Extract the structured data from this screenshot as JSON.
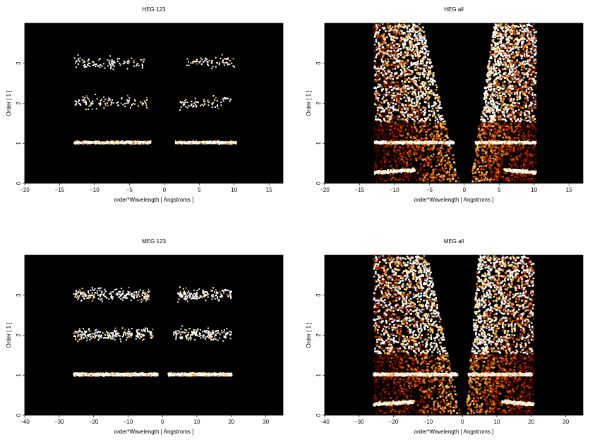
{
  "chart_data": [
    {
      "id": "heg123",
      "type": "heatmap",
      "title": "HEG 123",
      "xlabel": "order*Wavelength [ Angstroms ]",
      "ylabel": "Order [ 1 ]",
      "xlim": [
        -20,
        17
      ],
      "ylim": [
        0,
        4
      ],
      "xticks": [
        -20,
        -15,
        -10,
        -5,
        0,
        5,
        10,
        15
      ],
      "yticks": [
        0,
        1,
        2,
        3
      ],
      "background": "#000000",
      "bands": [
        {
          "order": 1,
          "x_ranges": [
            [
              -13,
              -2
            ],
            [
              1.5,
              10.2
            ]
          ],
          "intensity": "high"
        },
        {
          "order": 2,
          "x_ranges": [
            [
              -13,
              -2.5
            ],
            [
              2,
              9.5
            ]
          ],
          "intensity": "sparse"
        },
        {
          "order": 3,
          "x_ranges": [
            [
              -13,
              -3
            ],
            [
              3,
              10
            ]
          ],
          "intensity": "sparse"
        }
      ],
      "fans": []
    },
    {
      "id": "hegall",
      "type": "heatmap",
      "title": "HEG all",
      "xlabel": "order*Wavelength [ Angstroms ]",
      "ylabel": "Order [ 1 ]",
      "xlim": [
        -20,
        17
      ],
      "ylim": [
        0,
        4
      ],
      "xticks": [
        -20,
        -15,
        -10,
        -5,
        0,
        5,
        10,
        15
      ],
      "yticks": [
        0,
        1,
        2,
        3
      ],
      "background": "#000000",
      "bands": [
        {
          "order": 1,
          "x_ranges": [
            [
              -13,
              -1.5
            ],
            [
              1.5,
              10.2
            ]
          ],
          "intensity": "high"
        }
      ],
      "fans": [
        {
          "side": "left",
          "x_outer": -13,
          "x_inner_top": -6.2,
          "x_inner_bottom": -0.8
        },
        {
          "side": "right",
          "x_outer": 10.2,
          "x_inner_top": 4.2,
          "x_inner_bottom": 0.8
        }
      ]
    },
    {
      "id": "meg123",
      "type": "heatmap",
      "title": "MEG 123",
      "xlabel": "order*Wavelength [ Angstroms ]",
      "ylabel": "Order [ 1 ]",
      "xlim": [
        -40,
        35
      ],
      "ylim": [
        0,
        4
      ],
      "xticks": [
        -40,
        -30,
        -20,
        -10,
        0,
        10,
        20,
        30
      ],
      "yticks": [
        0,
        1,
        2,
        3
      ],
      "background": "#000000",
      "bands": [
        {
          "order": 1,
          "x_ranges": [
            [
              -26,
              -1.5
            ],
            [
              1.5,
              20
            ]
          ],
          "intensity": "high"
        },
        {
          "order": 2,
          "x_ranges": [
            [
              -26,
              -3
            ],
            [
              3,
              20
            ]
          ],
          "intensity": "sparse"
        },
        {
          "order": 3,
          "x_ranges": [
            [
              -26,
              -4
            ],
            [
              4,
              20
            ]
          ],
          "intensity": "sparse"
        }
      ],
      "fans": []
    },
    {
      "id": "megall",
      "type": "heatmap",
      "title": "MEG all",
      "xlabel": "order*Wavelength [ Angstroms ]",
      "ylabel": "Order [ 1 ]",
      "xlim": [
        -40,
        35
      ],
      "ylim": [
        0,
        4
      ],
      "xticks": [
        -40,
        -30,
        -20,
        -10,
        0,
        10,
        20,
        30
      ],
      "yticks": [
        0,
        1,
        2,
        3
      ],
      "background": "#000000",
      "bands": [
        {
          "order": 1,
          "x_ranges": [
            [
              -26,
              -1.5
            ],
            [
              1.5,
              20
            ]
          ],
          "intensity": "high"
        }
      ],
      "fans": [
        {
          "side": "left",
          "x_outer": -26,
          "x_inner_top": -10.5,
          "x_inner_bottom": -0.8
        },
        {
          "side": "right",
          "x_outer": 20.5,
          "x_inner_top": 4.5,
          "x_inner_bottom": 0.8
        }
      ]
    }
  ]
}
